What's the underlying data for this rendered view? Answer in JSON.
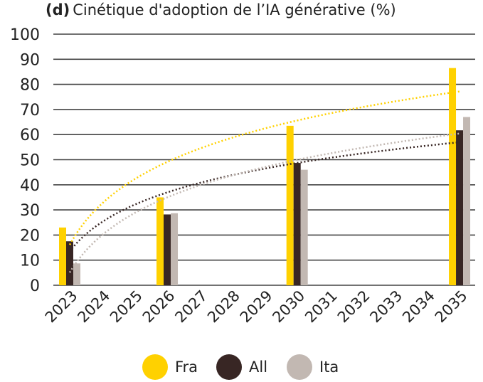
{
  "chart_data": {
    "type": "bar",
    "panel_label": "(d)",
    "title": "Cinétique d'adoption de l’IA générative (%)",
    "xlabel": "",
    "ylabel": "",
    "ylim": [
      0,
      100
    ],
    "yticks": [
      0,
      10,
      20,
      30,
      40,
      50,
      60,
      70,
      80,
      90,
      100
    ],
    "grid": "horizontal",
    "legend_position": "bottom",
    "categories": [
      "2023",
      "2024",
      "2025",
      "2026",
      "2027",
      "2028",
      "2029",
      "2030",
      "2031",
      "2032",
      "2033",
      "2034",
      "2035"
    ],
    "trendline": "logarithmic",
    "series": [
      {
        "name": "Fra",
        "color": "#FFD100",
        "values": [
          23,
          null,
          null,
          35,
          null,
          null,
          null,
          63.5,
          null,
          null,
          null,
          null,
          86.5
        ]
      },
      {
        "name": "All",
        "color": "#382624",
        "values": [
          17.5,
          null,
          null,
          28.2,
          null,
          null,
          null,
          48.7,
          null,
          null,
          null,
          null,
          61.7
        ]
      },
      {
        "name": "Ita",
        "color": "#C2B8B2",
        "values": [
          8.7,
          null,
          null,
          28.7,
          null,
          null,
          null,
          46,
          null,
          null,
          null,
          null,
          67
        ]
      }
    ]
  }
}
